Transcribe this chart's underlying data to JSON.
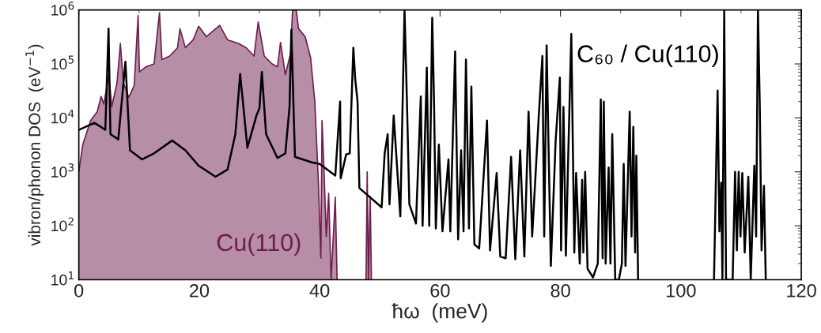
{
  "chart_data": {
    "type": "line",
    "xlabel": "ħω  (meV)",
    "ylabel": "vibron/phonon DOS  (eV$^{−1}$)",
    "log": "y",
    "legend": false,
    "grid": false,
    "xlim": [
      0,
      120
    ],
    "xticks": [
      0,
      20,
      40,
      60,
      80,
      100,
      120
    ],
    "ylim": [
      10,
      1000000
    ],
    "yticks": [
      {
        "value": 10,
        "label": "10$^{1}$"
      },
      {
        "value": 100,
        "label": "10$^{2}$"
      },
      {
        "value": 1000,
        "label": "10$^{3}$"
      },
      {
        "value": 10000,
        "label": "10$^{4}$"
      },
      {
        "value": 100000,
        "label": "10$^{5}$"
      },
      {
        "value": 1000000,
        "label": "10$^{6}$"
      }
    ],
    "series": [
      {
        "name": "Cu(110)",
        "type": "area",
        "color": "#6e1d4e",
        "x": [
          0,
          0.66,
          1.97,
          3.06,
          3.7,
          4.15,
          5.0,
          5.47,
          6.35,
          6.9,
          7.4,
          8.3,
          9.2,
          9.85,
          10.06,
          11.2,
          12.5,
          13.4,
          13.8,
          15.1,
          16.4,
          16.8,
          17.7,
          19.0,
          19.9,
          21.2,
          23.4,
          24.7,
          26.5,
          27.8,
          29.1,
          29.8,
          30.8,
          32.1,
          33.0,
          33.5,
          34.3,
          35.2,
          35.5,
          36.1,
          36.5,
          37.6,
          38.5,
          39.2,
          39.8,
          40.2,
          40.4,
          40.7,
          41.1,
          41.5,
          41.9,
          42.6,
          42.9,
          45,
          47.7,
          47.9,
          48.1,
          48.4,
          48.6
        ],
        "values": [
          1000,
          3200,
          8900,
          13000,
          25000,
          18000,
          63000,
          16000,
          45000,
          240000,
          45000,
          24000,
          40000,
          790000,
          71000,
          89000,
          100000,
          890000,
          120000,
          140000,
          200000,
          450000,
          200000,
          280000,
          500000,
          320000,
          520000,
          280000,
          240000,
          200000,
          140000,
          600000,
          140000,
          100000,
          89000,
          250000,
          63000,
          160000,
          1000000,
          1000000,
          450000,
          320000,
          130000,
          20000,
          630,
          25,
          8900,
          1300,
          63,
          400,
          10,
          340,
          10,
          null,
          10,
          1000,
          10,
          350,
          10
        ]
      },
      {
        "name": "C₆₀ / Cu(110)",
        "color": "#000000",
        "x": [
          0,
          2.6,
          4.4,
          4.94,
          5.25,
          6.56,
          7.74,
          8.5,
          10.5,
          12.5,
          15.5,
          17.7,
          19.9,
          22.7,
          24.7,
          26.0,
          26.8,
          28.0,
          29.5,
          30.0,
          30.4,
          31.1,
          33.0,
          34.3,
          35.0,
          35.3,
          35.9,
          38.7,
          40,
          42.6,
          43.4,
          43.5,
          44.4,
          45.0,
          45.6,
          45.9,
          46.3,
          46.6,
          50.3,
          50.8,
          51.3,
          51.6,
          52.3,
          53.4,
          54.1,
          54.5,
          54.9,
          56.0,
          56.8,
          57.1,
          57.8,
          58.2,
          58.7,
          59.0,
          59.3,
          59.8,
          60.4,
          61.4,
          61.7,
          62.5,
          63.0,
          63.5,
          63.9,
          64.3,
          64.8,
          65.2,
          65.7,
          66.5,
          67.8,
          68.3,
          69.4,
          70.0,
          70.9,
          71.8,
          72.5,
          73.3,
          74.0,
          74.7,
          75.3,
          76.4,
          77.0,
          77.3,
          77.7,
          78.4,
          79.2,
          79.9,
          80.1,
          80.5,
          80.9,
          81.3,
          81.8,
          82.3,
          82.6,
          83.2,
          83.6,
          83.8,
          84.1,
          84.5,
          85.4,
          86.2,
          86.7,
          87.0,
          87.2,
          87.5,
          88.0,
          88.3,
          88.6,
          89.1,
          89.7,
          90.2,
          90.5,
          90.8,
          91.5,
          91.8,
          92.1,
          92.4,
          92.6,
          92.9,
          99,
          105.5,
          106.1,
          106.4,
          106.7,
          106.9,
          107.2,
          107.5,
          108.6,
          109.0,
          109.3,
          109.6,
          109.9,
          110.2,
          110.6,
          111.2,
          111.6,
          112.2,
          112.5,
          112.8,
          113.1,
          113.4,
          113.8,
          114.1
        ],
        "values": [
          6000,
          8100,
          6000,
          450000,
          5000,
          4000,
          110000,
          2500,
          1700,
          2200,
          3800,
          2500,
          1300,
          810,
          1100,
          5000,
          65000,
          2800,
          11000,
          15000,
          71000,
          5000,
          1800,
          2200,
          16000,
          430000,
          1900,
          1500,
          1400,
          850,
          20000,
          760,
          2100,
          2200,
          200000,
          54000,
          20000,
          500,
          220,
          2200,
          5000,
          250,
          11000,
          150,
          1000000,
          20000,
          250,
          110,
          25000,
          100,
          85000,
          100,
          720000,
          20000,
          89,
          3200,
          79,
          1700,
          79,
          170000,
          56,
          2500,
          79,
          120000,
          89,
          38000,
          45,
          38,
          8900,
          35,
          950,
          27,
          25,
          1900,
          24,
          2500,
          27,
          13000,
          63,
          11000,
          140000,
          63,
          220000,
          18,
          3800,
          56000,
          35,
          16000,
          28,
          2200,
          360000,
          32,
          950,
          20,
          710,
          32,
          1000,
          16,
          11,
          20,
          22000,
          25,
          20000,
          20,
          1200,
          20,
          5000,
          10,
          10,
          20,
          1400,
          18,
          13000,
          63,
          6800,
          32,
          2000,
          10,
          null,
          10,
          32000,
          79,
          630,
          10,
          1000000,
          10,
          10,
          1000,
          35,
          1000,
          63,
          950,
          32,
          810,
          10,
          1300,
          63,
          1000000,
          18000,
          35,
          550,
          10
        ]
      }
    ]
  }
}
